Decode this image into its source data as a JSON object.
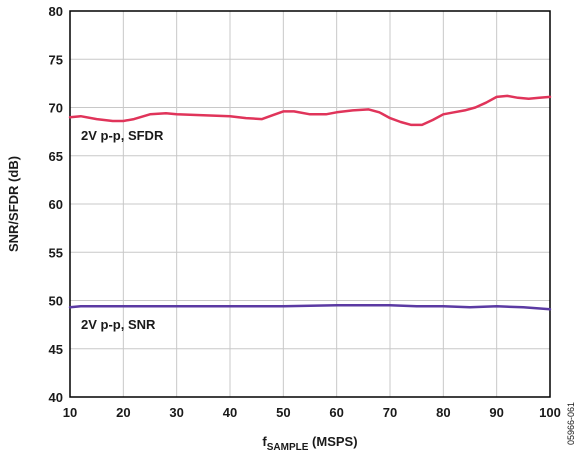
{
  "chart_data": {
    "type": "line",
    "xlabel_main": "f",
    "xlabel_sub": "SAMPLE",
    "xlabel_rest": " (MSPS)",
    "ylabel": "SNR/SFDR (dB)",
    "xlim": [
      10,
      100
    ],
    "ylim": [
      40,
      80
    ],
    "x_ticks": [
      10,
      20,
      30,
      40,
      50,
      60,
      70,
      80,
      90,
      100
    ],
    "y_ticks": [
      40,
      45,
      50,
      55,
      60,
      65,
      70,
      75,
      80
    ],
    "grid": true,
    "series": [
      {
        "name": "2V p-p, SFDR",
        "color": "#e0345a",
        "x": [
          10,
          12,
          15,
          18,
          20,
          22,
          25,
          28,
          30,
          35,
          40,
          43,
          46,
          48,
          50,
          52,
          55,
          58,
          60,
          63,
          66,
          68,
          70,
          72,
          74,
          76,
          78,
          80,
          82,
          84,
          86,
          88,
          90,
          92,
          94,
          96,
          98,
          100
        ],
        "y": [
          69.0,
          69.1,
          68.8,
          68.6,
          68.6,
          68.8,
          69.3,
          69.4,
          69.3,
          69.2,
          69.1,
          68.9,
          68.8,
          69.2,
          69.6,
          69.6,
          69.3,
          69.3,
          69.5,
          69.7,
          69.8,
          69.5,
          68.9,
          68.5,
          68.2,
          68.2,
          68.7,
          69.3,
          69.5,
          69.7,
          70.0,
          70.5,
          71.1,
          71.2,
          71.0,
          70.9,
          71.0,
          71.1
        ]
      },
      {
        "name": "2V p-p, SNR",
        "color": "#5b3aa3",
        "x": [
          10,
          12,
          15,
          20,
          30,
          40,
          50,
          60,
          65,
          70,
          75,
          80,
          85,
          90,
          95,
          100
        ],
        "y": [
          49.3,
          49.4,
          49.4,
          49.4,
          49.4,
          49.4,
          49.4,
          49.5,
          49.5,
          49.5,
          49.4,
          49.4,
          49.3,
          49.4,
          49.3,
          49.1
        ]
      }
    ]
  },
  "figure_id": "05966-061"
}
